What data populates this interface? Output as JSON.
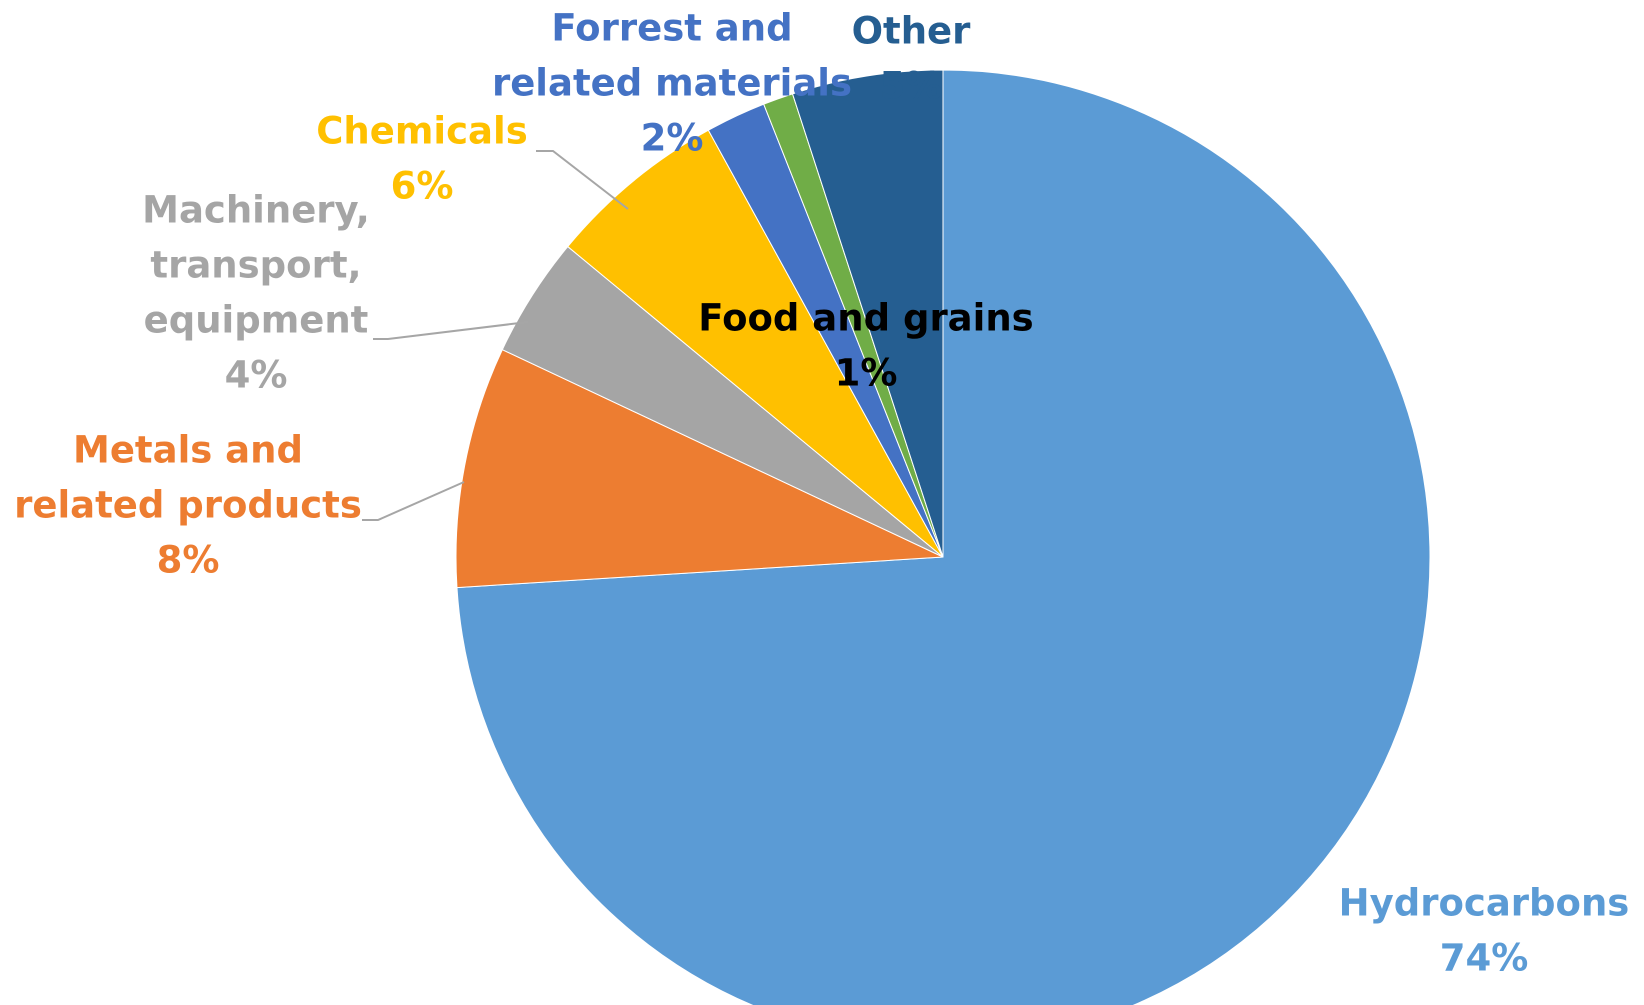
{
  "chart_data": {
    "type": "pie",
    "title": "",
    "start_angle_deg": 0,
    "direction": "clockwise",
    "slices": [
      {
        "name": "Hydrocarbons",
        "value": 74,
        "label": "74%",
        "color": "#5b9bd5",
        "label_color": "#5b9bd5"
      },
      {
        "name": "Metals and related products",
        "value": 8,
        "label": "8%",
        "color": "#ed7d31",
        "label_color": "#ed7d31"
      },
      {
        "name": "Machinery, transport, equipment",
        "value": 4,
        "label": "4%",
        "color": "#a5a5a5",
        "label_color": "#a5a5a5"
      },
      {
        "name": "Chemicals",
        "value": 6,
        "label": "6%",
        "color": "#ffc000",
        "label_color": "#ffc000"
      },
      {
        "name": "Forrest and related materials",
        "value": 2,
        "label": "2%",
        "color": "#4472c4",
        "label_color": "#4472c4"
      },
      {
        "name": "Food and grains",
        "value": 1,
        "label": "1%",
        "color": "#70ad47",
        "label_color": "#000000"
      },
      {
        "name": "Other",
        "value": 5,
        "label": "5%",
        "color": "#255e91",
        "label_color": "#255e91"
      }
    ]
  }
}
